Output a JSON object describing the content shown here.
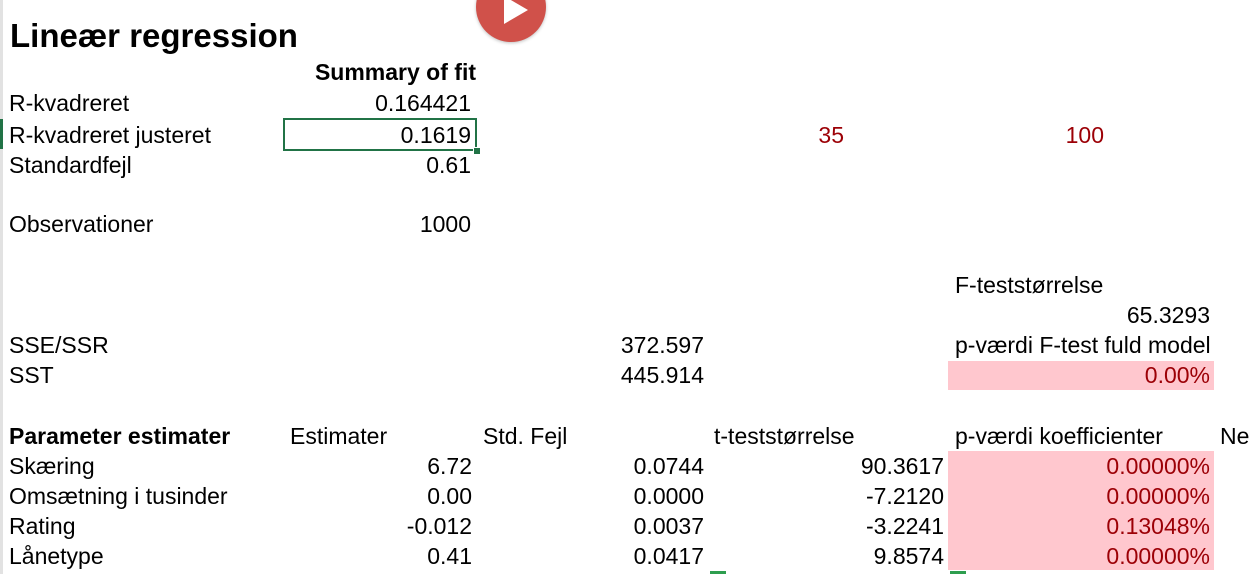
{
  "title": "Lineær regression",
  "summary": {
    "header": "Summary of fit",
    "r_squared_label": "R-kvadreret",
    "r_squared_value": "0.164421",
    "r_squared_adj_label": "R-kvadreret justeret",
    "r_squared_adj_value": "0.1619",
    "std_error_label": "Standardfejl",
    "std_error_value": "0.61",
    "observations_label": "Observationer",
    "observations_value": "1000"
  },
  "extra_values": {
    "value_a": "35",
    "value_b": "100"
  },
  "f_test": {
    "label": "F-teststørrelse",
    "value": "65.3293",
    "p_label": "p-værdi F-test fuld model",
    "p_value": "0.00%"
  },
  "sums": {
    "sse_label": "SSE/SSR",
    "sse_value": "372.597",
    "sst_label": "SST",
    "sst_value": "445.914"
  },
  "parameters": {
    "headers": {
      "name": "Parameter estimater",
      "estimate": "Estimater",
      "std_error": "Std. Fejl",
      "t_stat": "t-teststørrelse",
      "p_value": "p-værdi koefficienter",
      "next": "Ne"
    },
    "rows": [
      {
        "name": "Skæring",
        "estimate": "6.72",
        "std_error": "0.0744",
        "t_stat": "90.3617",
        "p_value": "0.00000%"
      },
      {
        "name": "Omsætning i tusinder",
        "estimate": "0.00",
        "std_error": "0.0000",
        "t_stat": "-7.2120",
        "p_value": "0.00000%"
      },
      {
        "name": "Rating",
        "estimate": "-0.012",
        "std_error": "0.0037",
        "t_stat": "-3.2241",
        "p_value": "0.13048%"
      },
      {
        "name": "Lånetype",
        "estimate": "0.41",
        "std_error": "0.0417",
        "t_stat": "9.8574",
        "p_value": "0.00000%"
      }
    ]
  },
  "colors": {
    "accent_green": "#217346",
    "significant_fill": "#ffc7ce",
    "significant_text": "#9c0006",
    "play_button": "#d0514a"
  },
  "icons": {
    "play": "play-icon"
  }
}
